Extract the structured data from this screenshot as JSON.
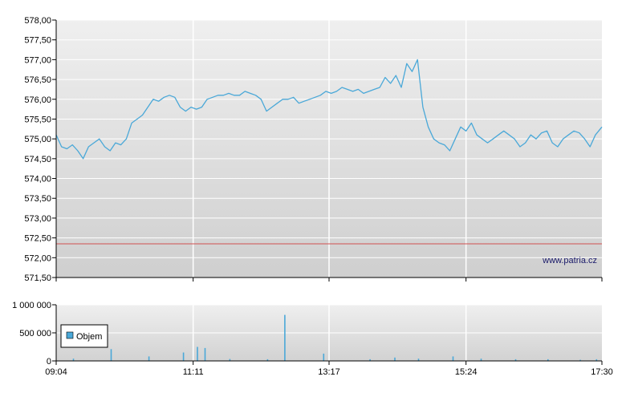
{
  "chart_data": [
    {
      "type": "line",
      "watermark": "www.patria.cz",
      "y_ticks": [
        "578,00",
        "577,50",
        "577,00",
        "576,50",
        "576,00",
        "575,50",
        "575,00",
        "574,50",
        "574,00",
        "573,50",
        "573,00",
        "572,50",
        "572,00",
        "571,50"
      ],
      "ylim": [
        571.5,
        578.0
      ],
      "x_ticks": [
        "09:04",
        "11:11",
        "13:17",
        "15:24",
        "17:30"
      ],
      "reference_line": 572.35,
      "colors": {
        "line": "#4aa8d8",
        "reference": "#d05050",
        "grid": "#ffffff"
      },
      "grid": true,
      "series": [
        {
          "x": [
            "09:04",
            "09:09",
            "09:14",
            "09:19",
            "09:24",
            "09:29",
            "09:34",
            "09:39",
            "09:44",
            "09:49",
            "09:54",
            "09:59",
            "10:04",
            "10:09",
            "10:14",
            "10:19",
            "10:24",
            "10:29",
            "10:34",
            "10:39",
            "10:44",
            "10:49",
            "10:54",
            "10:59",
            "11:04",
            "11:09",
            "11:14",
            "11:19",
            "11:24",
            "11:29",
            "11:34",
            "11:39",
            "11:44",
            "11:49",
            "11:54",
            "11:59",
            "12:04",
            "12:09",
            "12:14",
            "12:19",
            "12:24",
            "12:29",
            "12:34",
            "12:39",
            "12:44",
            "12:49",
            "12:54",
            "12:59",
            "13:04",
            "13:09",
            "13:14",
            "13:19",
            "13:24",
            "13:29",
            "13:34",
            "13:39",
            "13:44",
            "13:49",
            "13:54",
            "13:59",
            "14:04",
            "14:09",
            "14:14",
            "14:19",
            "14:24",
            "14:29",
            "14:34",
            "14:39",
            "14:44",
            "14:49",
            "14:54",
            "14:59",
            "15:04",
            "15:09",
            "15:14",
            "15:19",
            "15:24",
            "15:29",
            "15:34",
            "15:39",
            "15:44",
            "15:49",
            "15:54",
            "15:59",
            "16:04",
            "16:09",
            "16:14",
            "16:19",
            "16:24",
            "16:29",
            "16:34",
            "16:39",
            "16:44",
            "16:49",
            "16:54",
            "16:59",
            "17:04",
            "17:09",
            "17:14",
            "17:19",
            "17:24",
            "17:30"
          ],
          "y": [
            575.1,
            574.8,
            574.75,
            574.85,
            574.7,
            574.5,
            574.8,
            574.9,
            575.0,
            574.8,
            574.7,
            574.9,
            574.85,
            575.0,
            575.4,
            575.5,
            575.6,
            575.8,
            576.0,
            575.95,
            576.05,
            576.1,
            576.05,
            575.8,
            575.7,
            575.8,
            575.75,
            575.8,
            576.0,
            576.05,
            576.1,
            576.1,
            576.15,
            576.1,
            576.1,
            576.2,
            576.15,
            576.1,
            576.0,
            575.7,
            575.8,
            575.9,
            576.0,
            576.0,
            576.05,
            575.9,
            575.95,
            576.0,
            576.05,
            576.1,
            576.2,
            576.15,
            576.2,
            576.3,
            576.25,
            576.2,
            576.25,
            576.15,
            576.2,
            576.25,
            576.3,
            576.55,
            576.4,
            576.6,
            576.3,
            576.9,
            576.7,
            577.0,
            575.8,
            575.3,
            575.0,
            574.9,
            574.85,
            574.7,
            575.0,
            575.3,
            575.2,
            575.4,
            575.1,
            575.0,
            574.9,
            575.0,
            575.1,
            575.2,
            575.1,
            575.0,
            574.8,
            574.9,
            575.1,
            575.0,
            575.15,
            575.2,
            574.9,
            574.8,
            575.0,
            575.1,
            575.2,
            575.15,
            575.0,
            574.8,
            575.1,
            575.3
          ]
        }
      ]
    },
    {
      "type": "bar",
      "y_ticks": [
        "1 000 000",
        "500 000",
        "0"
      ],
      "ylim": [
        0,
        1000000
      ],
      "x_ticks": [
        "09:04",
        "11:11",
        "13:17",
        "15:24",
        "17:30"
      ],
      "series": [
        {
          "name": "Objem",
          "color": "#4aa8d8",
          "x": [
            "09:20",
            "09:55",
            "10:30",
            "11:02",
            "11:15",
            "11:22",
            "11:45",
            "12:20",
            "12:36",
            "13:12",
            "13:55",
            "14:18",
            "14:40",
            "15:12",
            "15:38",
            "16:10",
            "16:40",
            "17:10",
            "17:25"
          ],
          "values": [
            40000,
            210000,
            80000,
            150000,
            250000,
            230000,
            35000,
            30000,
            820000,
            130000,
            30000,
            60000,
            40000,
            80000,
            40000,
            30000,
            30000,
            20000,
            30000
          ]
        }
      ]
    }
  ]
}
